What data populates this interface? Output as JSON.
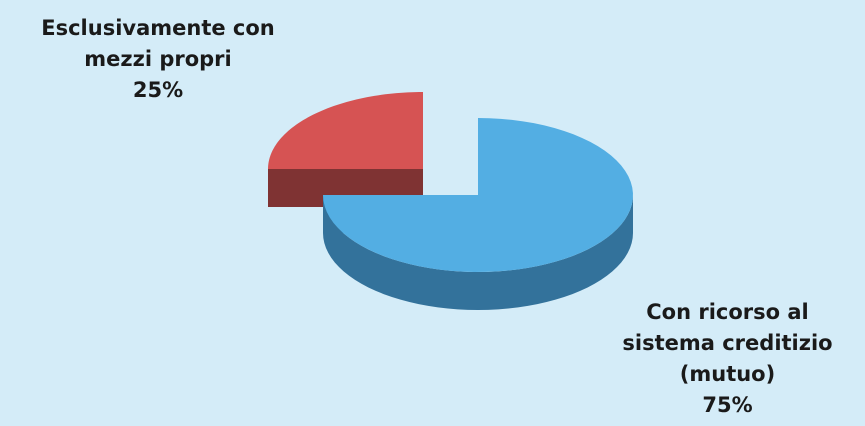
{
  "chart_data": {
    "type": "pie",
    "style": "3d-exploded",
    "title": "",
    "slices": [
      {
        "label_lines": [
          "Esclusivamente con",
          "mezzi propri"
        ],
        "value": 25,
        "value_label": "25%",
        "color": "#d65353",
        "side_color": "#7f3333"
      },
      {
        "label_lines": [
          "Con ricorso al",
          "sistema creditizio",
          "(mutuo)"
        ],
        "value": 75,
        "value_label": "75%",
        "color": "#53aee3",
        "side_color": "#33729b"
      }
    ]
  }
}
